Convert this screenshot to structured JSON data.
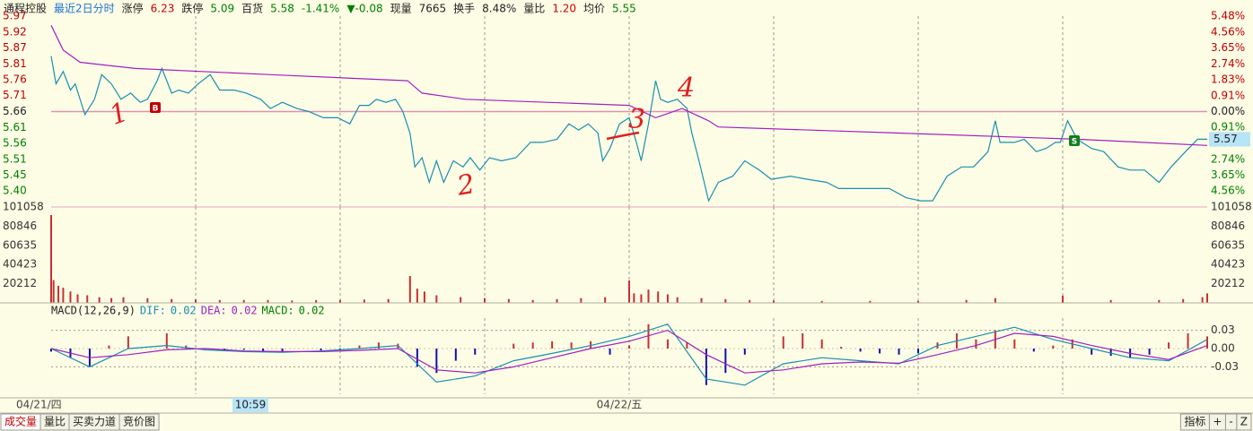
{
  "header": {
    "items": [
      {
        "text": "通程控股",
        "color": "#222222"
      },
      {
        "text": "最近2日分时",
        "color": "#1a6fd0"
      },
      {
        "text": "涨停",
        "color": "#222222"
      },
      {
        "text": "6.23",
        "color": "#d00000"
      },
      {
        "text": "跌停",
        "color": "#222222"
      },
      {
        "text": "5.09",
        "color": "#008000"
      },
      {
        "text": "百货",
        "color": "#222222"
      },
      {
        "text": "5.58",
        "color": "#008000"
      },
      {
        "text": "-1.41%",
        "color": "#008000"
      },
      {
        "text": "▼-0.08",
        "color": "#008000"
      },
      {
        "text": "现量",
        "color": "#222222"
      },
      {
        "text": "7665",
        "color": "#222222"
      },
      {
        "text": "换手",
        "color": "#222222"
      },
      {
        "text": "8.48%",
        "color": "#222222"
      },
      {
        "text": "量比",
        "color": "#222222"
      },
      {
        "text": "1.20",
        "color": "#d00000"
      },
      {
        "text": "均价",
        "color": "#222222"
      },
      {
        "text": "5.55",
        "color": "#008000"
      }
    ]
  },
  "chart_data": [
    {
      "type": "line",
      "xlim": [
        0,
        480
      ],
      "xticks": [
        60,
        120,
        180,
        240,
        300,
        360,
        420
      ],
      "ylim": [
        5.35,
        5.97
      ],
      "yticks": [
        {
          "value": 5.97,
          "label": "5.97"
        },
        {
          "value": 5.918,
          "label": "5.92"
        },
        {
          "value": 5.867,
          "label": "5.87"
        },
        {
          "value": 5.815,
          "label": "5.81"
        },
        {
          "value": 5.763,
          "label": "5.76"
        },
        {
          "value": 5.712,
          "label": "5.71"
        },
        {
          "value": 5.66,
          "label": "5.66"
        },
        {
          "value": 5.608,
          "label": "5.61"
        },
        {
          "value": 5.557,
          "label": "5.56"
        },
        {
          "value": 5.505,
          "label": "5.51"
        },
        {
          "value": 5.453,
          "label": "5.45"
        },
        {
          "value": 5.402,
          "label": "5.40"
        }
      ],
      "y2lim": [
        -5.48,
        5.48
      ],
      "y2ticks": [
        {
          "value": 5.48,
          "label": "5.48%"
        },
        {
          "value": 4.56,
          "label": "4.56%"
        },
        {
          "value": 3.65,
          "label": "3.65%"
        },
        {
          "value": 2.74,
          "label": "2.74%"
        },
        {
          "value": 1.83,
          "label": "1.83%"
        },
        {
          "value": 0.91,
          "label": "0.91%"
        },
        {
          "value": 0,
          "label": "0.00%"
        },
        {
          "value": -0.91,
          "label": "0.91%"
        },
        {
          "value": -1.83,
          "label": "1.83%"
        },
        {
          "value": -2.74,
          "label": "2.74%"
        },
        {
          "value": -3.65,
          "label": "3.65%"
        },
        {
          "value": -4.56,
          "label": "4.56%"
        }
      ],
      "last_price": 5.57,
      "series": [
        {
          "color": "#1a8fb0",
          "x": [
            0,
            2,
            5,
            8,
            10,
            14,
            18,
            21,
            25,
            29,
            33,
            37,
            40,
            44,
            46,
            50,
            53,
            57,
            61,
            66,
            70,
            76,
            81,
            87,
            91,
            96,
            102,
            107,
            113,
            119,
            124,
            128,
            132,
            135,
            139,
            143,
            146,
            149,
            151,
            154,
            157,
            160,
            163,
            167,
            171,
            174,
            178,
            182,
            187,
            193,
            199,
            204,
            210,
            215,
            219,
            223,
            227,
            229,
            232,
            236,
            240,
            243,
            245,
            248,
            251,
            253,
            256,
            260,
            264,
            266,
            269,
            273,
            277,
            283,
            288,
            294,
            299,
            307,
            314,
            322,
            327,
            337,
            348,
            355,
            361,
            366,
            372,
            378,
            383,
            389,
            392,
            394,
            400,
            404,
            409,
            413,
            417,
            419,
            422,
            426,
            432,
            437,
            443,
            448,
            454,
            460,
            465,
            471,
            476,
            480
          ],
          "values": [
            5.84,
            5.75,
            5.79,
            5.73,
            5.75,
            5.65,
            5.7,
            5.78,
            5.75,
            5.7,
            5.72,
            5.69,
            5.7,
            5.76,
            5.8,
            5.72,
            5.73,
            5.72,
            5.75,
            5.78,
            5.73,
            5.73,
            5.72,
            5.7,
            5.67,
            5.69,
            5.67,
            5.66,
            5.64,
            5.64,
            5.62,
            5.68,
            5.68,
            5.7,
            5.69,
            5.7,
            5.66,
            5.59,
            5.48,
            5.51,
            5.43,
            5.5,
            5.43,
            5.5,
            5.48,
            5.51,
            5.47,
            5.51,
            5.5,
            5.51,
            5.56,
            5.56,
            5.57,
            5.62,
            5.6,
            5.62,
            5.59,
            5.5,
            5.54,
            5.62,
            5.64,
            5.56,
            5.5,
            5.62,
            5.76,
            5.7,
            5.69,
            5.7,
            5.67,
            5.59,
            5.5,
            5.37,
            5.43,
            5.45,
            5.5,
            5.47,
            5.44,
            5.45,
            5.44,
            5.43,
            5.41,
            5.41,
            5.41,
            5.38,
            5.37,
            5.37,
            5.45,
            5.48,
            5.48,
            5.53,
            5.63,
            5.56,
            5.56,
            5.57,
            5.53,
            5.54,
            5.56,
            5.56,
            5.63,
            5.57,
            5.54,
            5.53,
            5.48,
            5.47,
            5.47,
            5.43,
            5.48,
            5.53,
            5.57,
            5.57
          ]
        },
        {
          "color": "#a020c0",
          "x": [
            0,
            5,
            12,
            35,
            91,
            148,
            154,
            172,
            240,
            251,
            262,
            273,
            277,
            352,
            426,
            480
          ],
          "values": [
            5.94,
            5.86,
            5.82,
            5.8,
            5.78,
            5.76,
            5.72,
            5.7,
            5.68,
            5.64,
            5.67,
            5.63,
            5.61,
            5.59,
            5.57,
            5.55
          ]
        }
      ]
    },
    {
      "type": "bar",
      "color": "#c83030",
      "xlim": [
        0,
        480
      ],
      "xticks": [
        60,
        120,
        180,
        240,
        300,
        360,
        420
      ],
      "ylim": [
        0,
        101058
      ],
      "yticks": [
        20212,
        40423,
        60635,
        80846,
        101058
      ],
      "x": [
        0,
        1,
        3,
        5,
        8,
        11,
        15,
        20,
        25,
        30,
        40,
        50,
        60,
        70,
        80,
        90,
        100,
        110,
        120,
        130,
        140,
        149,
        152,
        155,
        160,
        170,
        180,
        190,
        200,
        210,
        220,
        230,
        240,
        242,
        245,
        248,
        252,
        256,
        260,
        270,
        280,
        290,
        300,
        320,
        340,
        360,
        380,
        392,
        420,
        440,
        460,
        470,
        478,
        480
      ],
      "values": [
        92560,
        24000,
        18000,
        16000,
        12000,
        9000,
        8000,
        6000,
        5000,
        6000,
        5000,
        4000,
        3500,
        3000,
        3000,
        3000,
        2500,
        3000,
        3000,
        3500,
        4000,
        28300,
        15000,
        12000,
        8000,
        6000,
        5000,
        4000,
        3000,
        4000,
        5000,
        6000,
        23600,
        10000,
        9000,
        14000,
        12000,
        9000,
        6000,
        5000,
        4000,
        3000,
        2500,
        2000,
        2000,
        2000,
        3000,
        5000,
        7600,
        3000,
        3000,
        4000,
        6000,
        10000
      ]
    },
    {
      "type": "macd",
      "xlim": [
        0,
        480
      ],
      "xticks": [
        60,
        120,
        180,
        240,
        300,
        360,
        420
      ],
      "labels": [
        {
          "text": "MACD(12,26,9)",
          "color": "#222222"
        },
        {
          "text": "DIF:",
          "color": "#1a8fb0"
        },
        {
          "text": "0.02",
          "color": "#1a8fb0"
        },
        {
          "text": "DEA:",
          "color": "#a020c0"
        },
        {
          "text": "0.02",
          "color": "#a020c0"
        },
        {
          "text": "MACD:",
          "color": "#008000"
        },
        {
          "text": "0.02",
          "color": "#008000"
        }
      ],
      "ylim": [
        -0.075,
        0.05
      ],
      "yticks": [
        0.03,
        {
          "value": 0,
          "label": "0.00"
        },
        -0.03
      ],
      "colors": {
        "up": "#c83030",
        "down": "#1010b0"
      },
      "x": [
        0,
        8,
        16,
        24,
        32,
        40,
        48,
        56,
        64,
        72,
        80,
        88,
        96,
        104,
        112,
        120,
        128,
        136,
        144,
        152,
        160,
        168,
        176,
        184,
        192,
        200,
        208,
        216,
        224,
        232,
        240,
        248,
        256,
        264,
        272,
        280,
        288,
        296,
        304,
        312,
        320,
        328,
        336,
        344,
        352,
        360,
        368,
        376,
        384,
        392,
        400,
        408,
        416,
        424,
        432,
        440,
        448,
        456,
        464,
        472,
        480
      ],
      "histogram": [
        -0.005,
        -0.015,
        -0.03,
        0.005,
        0.02,
        0.0,
        0.025,
        0.005,
        0.0,
        -0.003,
        -0.002,
        -0.005,
        -0.006,
        0.0,
        -0.003,
        -0.002,
        0.005,
        0.01,
        0.008,
        -0.03,
        -0.04,
        -0.02,
        -0.01,
        0.0,
        0.008,
        0.01,
        0.012,
        0.01,
        0.012,
        -0.01,
        0.005,
        0.04,
        0.015,
        0.01,
        -0.06,
        -0.04,
        -0.01,
        0.0,
        0.02,
        0.025,
        0.015,
        0.003,
        -0.005,
        -0.008,
        -0.01,
        -0.008,
        0.01,
        0.025,
        0.015,
        0.03,
        0.015,
        -0.005,
        0.005,
        0.015,
        -0.01,
        -0.012,
        -0.015,
        -0.01,
        0.01,
        0.025,
        0.02
      ],
      "series": [
        {
          "color": "#1a8fb0",
          "x": [
            0,
            16,
            32,
            48,
            64,
            80,
            96,
            112,
            128,
            144,
            160,
            176,
            192,
            208,
            224,
            240,
            256,
            272,
            288,
            304,
            320,
            336,
            352,
            368,
            384,
            400,
            416,
            432,
            448,
            464,
            480
          ],
          "values": [
            0,
            -0.03,
            0.0,
            0.005,
            -0.002,
            -0.005,
            -0.006,
            -0.004,
            0.0,
            0.005,
            -0.055,
            -0.045,
            -0.02,
            -0.008,
            0.005,
            0.02,
            0.04,
            -0.05,
            -0.06,
            -0.025,
            -0.015,
            -0.02,
            -0.025,
            0.005,
            0.02,
            0.035,
            0.015,
            0.0,
            -0.015,
            -0.02,
            0.015
          ]
        },
        {
          "color": "#a020c0",
          "x": [
            0,
            16,
            32,
            48,
            64,
            80,
            96,
            112,
            128,
            144,
            160,
            176,
            192,
            208,
            224,
            240,
            256,
            272,
            288,
            304,
            320,
            336,
            352,
            368,
            384,
            400,
            416,
            432,
            448,
            464,
            480
          ],
          "values": [
            0,
            -0.015,
            -0.01,
            -0.002,
            0.0,
            -0.004,
            -0.005,
            -0.005,
            -0.003,
            0.0,
            -0.035,
            -0.04,
            -0.03,
            -0.015,
            0.0,
            0.012,
            0.03,
            -0.01,
            -0.04,
            -0.035,
            -0.025,
            -0.022,
            -0.024,
            -0.01,
            0.005,
            0.025,
            0.02,
            0.005,
            -0.008,
            -0.018,
            0.005
          ]
        }
      ]
    }
  ],
  "annotations": [
    "1",
    "2",
    "3",
    "4"
  ],
  "markers": [
    "B",
    "S"
  ],
  "footer": {
    "dates": [
      "04/21/四",
      "04/22/五"
    ],
    "cursor": "10:59",
    "tabs": [
      "成交量",
      "量比",
      "买卖力道",
      "竞价图"
    ],
    "tools": [
      "指标",
      "+",
      "-",
      "Z"
    ]
  }
}
